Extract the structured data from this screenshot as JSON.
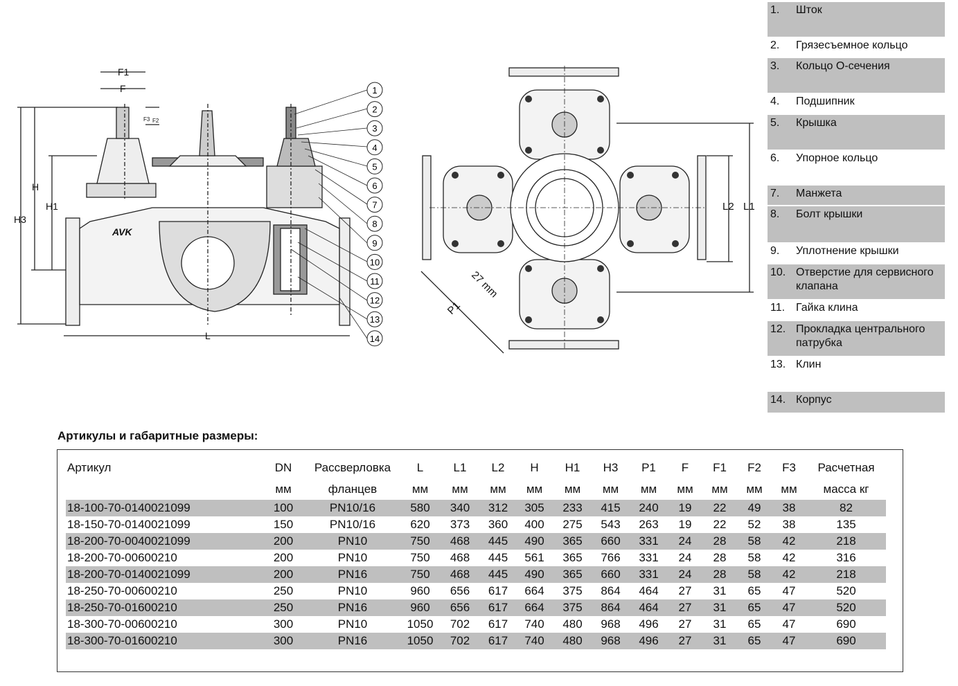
{
  "drawing": {
    "left_labels": {
      "F1": "F1",
      "F": "F",
      "F3": "F3",
      "F2": "F2",
      "H": "H",
      "H1": "H1",
      "H3": "H3",
      "L": "L",
      "logo": "AVK"
    },
    "callouts": [
      "1",
      "2",
      "3",
      "4",
      "5",
      "6",
      "7",
      "8",
      "9",
      "10",
      "11",
      "12",
      "13",
      "14"
    ],
    "right_labels": {
      "L2": "L2",
      "L1": "L1",
      "angle": "27 mm",
      "P1": "P1"
    }
  },
  "parts": [
    {
      "num": "1.",
      "name": "Шток",
      "shaded": true
    },
    {
      "num": "2.",
      "name": "Грязесъемное кольцо",
      "shaded": false
    },
    {
      "num": "3.",
      "name": "Кольцо О-сечения",
      "shaded": true
    },
    {
      "num": "4.",
      "name": "Подшипник",
      "shaded": false
    },
    {
      "num": "5.",
      "name": "Крышка",
      "shaded": true
    },
    {
      "num": "6.",
      "name": "Упорное кольцо",
      "shaded": false
    },
    {
      "num": "7.",
      "name": "Манжета",
      "shaded": true
    },
    {
      "num": "8.",
      "name": "Болт крышки",
      "shaded": true
    },
    {
      "num": "9.",
      "name": "Уплотнение крышки",
      "shaded": false
    },
    {
      "num": "10.",
      "name": "Отверстие для сервисного клапана",
      "shaded": true
    },
    {
      "num": "11.",
      "name": "Гайка клина",
      "shaded": false
    },
    {
      "num": "12.",
      "name": "Прокладка центрального патрубка",
      "shaded": true
    },
    {
      "num": "13.",
      "name": "Клин",
      "shaded": false
    },
    {
      "num": "14.",
      "name": "Корпус",
      "shaded": true
    }
  ],
  "table": {
    "title": "Артикулы и габаритные размеры:",
    "headers": [
      "Артикул",
      "DN",
      "Рассверловка",
      "L",
      "L1",
      "L2",
      "H",
      "H1",
      "H3",
      "P1",
      "F",
      "F1",
      "F2",
      "F3",
      "Расчетная"
    ],
    "subheaders": [
      "",
      "мм",
      "фланцев",
      "мм",
      "мм",
      "мм",
      "мм",
      "мм",
      "мм",
      "мм",
      "мм",
      "мм",
      "мм",
      "мм",
      "масса кг"
    ],
    "rows": [
      [
        "18-100-70-0140021099",
        "100",
        "PN10/16",
        "580",
        "340",
        "312",
        "305",
        "233",
        "415",
        "240",
        "19",
        "22",
        "49",
        "38",
        "82"
      ],
      [
        "18-150-70-0140021099",
        "150",
        "PN10/16",
        "620",
        "373",
        "360",
        "400",
        "275",
        "543",
        "263",
        "19",
        "22",
        "52",
        "38",
        "135"
      ],
      [
        "18-200-70-0040021099",
        "200",
        "PN10",
        "750",
        "468",
        "445",
        "490",
        "365",
        "660",
        "331",
        "24",
        "28",
        "58",
        "42",
        "218"
      ],
      [
        "18-200-70-00600210",
        "200",
        "PN10",
        "750",
        "468",
        "445",
        "561",
        "365",
        "766",
        "331",
        "24",
        "28",
        "58",
        "42",
        "316"
      ],
      [
        "18-200-70-0140021099",
        "200",
        "PN16",
        "750",
        "468",
        "445",
        "490",
        "365",
        "660",
        "331",
        "24",
        "28",
        "58",
        "42",
        "218"
      ],
      [
        "18-250-70-00600210",
        "250",
        "PN10",
        "960",
        "656",
        "617",
        "664",
        "375",
        "864",
        "464",
        "27",
        "31",
        "65",
        "47",
        "520"
      ],
      [
        "18-250-70-01600210",
        "250",
        "PN16",
        "960",
        "656",
        "617",
        "664",
        "375",
        "864",
        "464",
        "27",
        "31",
        "65",
        "47",
        "520"
      ],
      [
        "18-300-70-00600210",
        "300",
        "PN10",
        "1050",
        "702",
        "617",
        "740",
        "480",
        "968",
        "496",
        "27",
        "31",
        "65",
        "47",
        "690"
      ],
      [
        "18-300-70-01600210",
        "300",
        "PN16",
        "1050",
        "702",
        "617",
        "740",
        "480",
        "968",
        "496",
        "27",
        "31",
        "65",
        "47",
        "690"
      ]
    ]
  }
}
